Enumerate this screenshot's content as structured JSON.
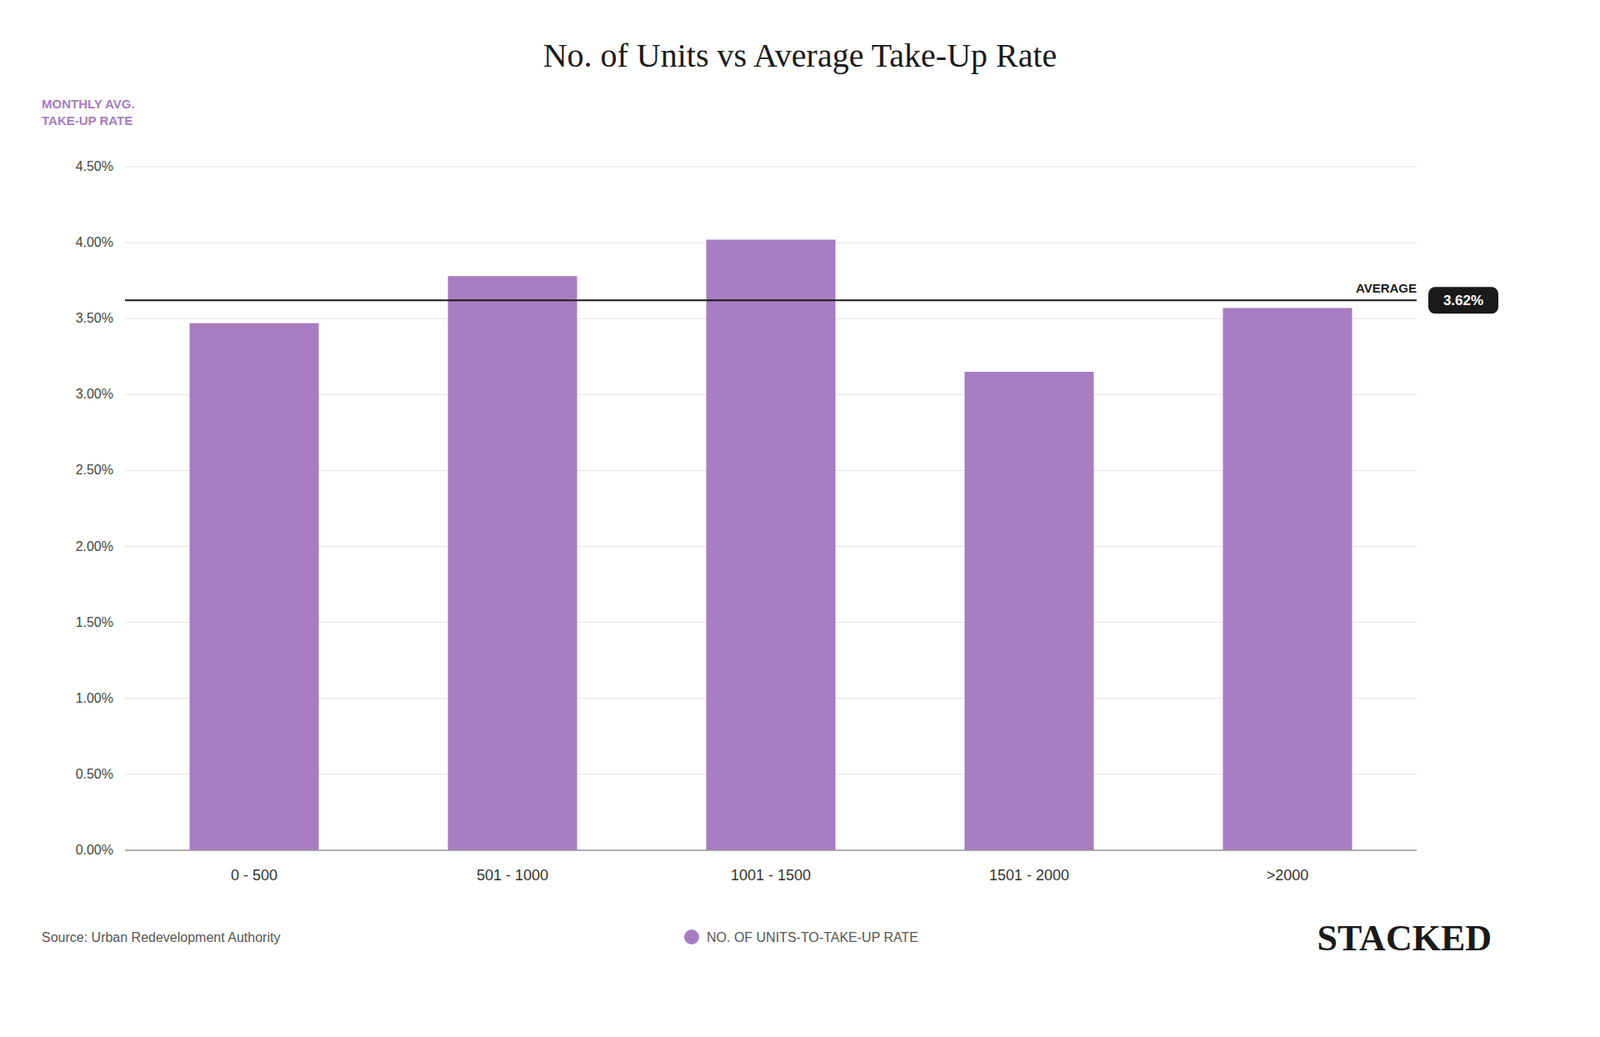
{
  "chart_data": {
    "type": "bar",
    "title": "No. of Units vs Average Take-Up Rate",
    "y_label": "MONTHLY AVG.\nTAKE-UP RATE",
    "categories": [
      "0 - 500",
      "501 - 1000",
      "1001 - 1500",
      "1501 - 2000",
      ">2000"
    ],
    "series": [
      {
        "name": "NO. OF UNITS-TO-TAKE-UP RATE",
        "color": "#a87cc0",
        "values": [
          0.0347,
          0.0378,
          0.0402,
          0.0315,
          0.0357
        ]
      }
    ],
    "ylim": [
      0,
      0.045
    ],
    "yticks": [
      {
        "value": 0.0,
        "label": "0.00%"
      },
      {
        "value": 0.005,
        "label": "0.50%"
      },
      {
        "value": 0.01,
        "label": "1.00%"
      },
      {
        "value": 0.015,
        "label": "1.50%"
      },
      {
        "value": 0.02,
        "label": "2.00%"
      },
      {
        "value": 0.025,
        "label": "2.50%"
      },
      {
        "value": 0.03,
        "label": "3.00%"
      },
      {
        "value": 0.035,
        "label": "3.50%"
      },
      {
        "value": 0.04,
        "label": "4.00%"
      },
      {
        "value": 0.045,
        "label": "4.50%"
      }
    ],
    "reference_lines": [
      {
        "value": 0.0362,
        "label": "AVERAGE",
        "value_label": "3.62%",
        "color": "#1a1a1a"
      }
    ],
    "annotations": [
      "Source: Urban Redevelopment Authority",
      "STACKED"
    ],
    "grid": true,
    "legend": "bottom"
  }
}
